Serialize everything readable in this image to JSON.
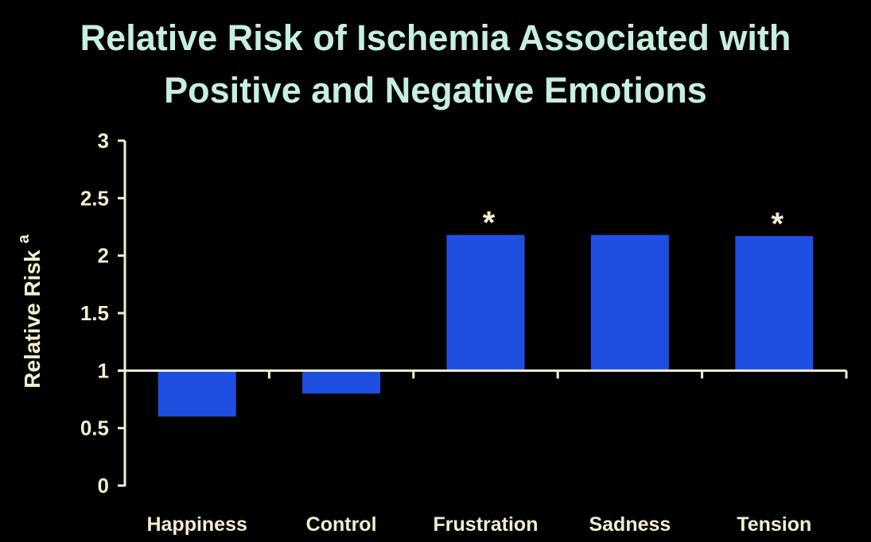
{
  "chart_data": {
    "type": "bar",
    "title_line1": "Relative Risk of Ischemia Associated with",
    "title_line2": "Positive and Negative Emotions",
    "ylabel": "Relative Risk",
    "ylabel_superscript": "a",
    "xlabel": "",
    "categories": [
      "Happiness",
      "Control",
      "Frustration",
      "Sadness",
      "Tension"
    ],
    "values": [
      0.6,
      0.8,
      2.18,
      2.18,
      2.17
    ],
    "significance": [
      "",
      "",
      "*",
      "",
      "*"
    ],
    "baseline": 1,
    "ylim": [
      0,
      3
    ],
    "yticks": [
      "0",
      "0.5",
      "1",
      "1.5",
      "2",
      "2.5",
      "3"
    ],
    "grid": false,
    "colors": {
      "bar": "#1f4fe0",
      "axis": "#f3eed0",
      "title": "#c6efe0",
      "background": "#000000"
    }
  }
}
